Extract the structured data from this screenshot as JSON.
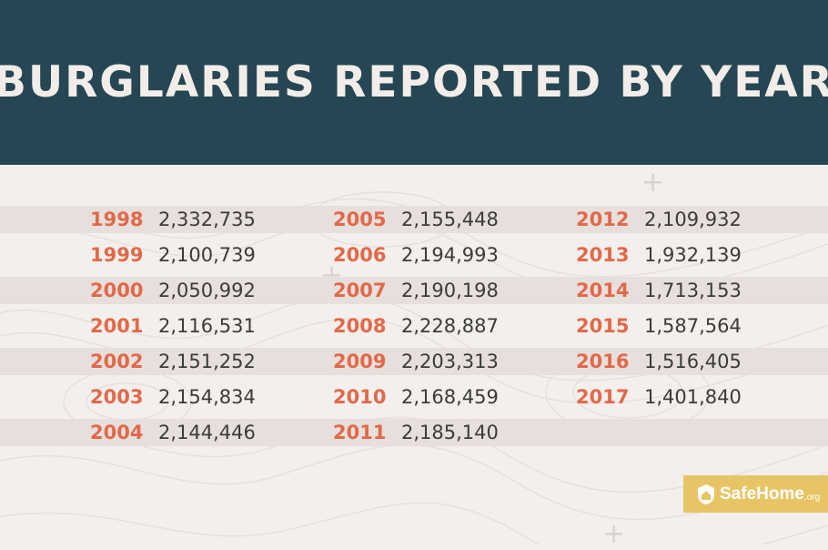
{
  "header": {
    "title": "BURGLARIES REPORTED BY YEAR"
  },
  "badge": {
    "name": "SafeHome",
    "tld": ".org"
  },
  "decor": {
    "plus_icon": "+"
  },
  "colors": {
    "header_bg": "#264653",
    "year_text": "#e1694a",
    "value_text": "#3b3b3b",
    "band": "#e7dfdb",
    "background": "#f3efec",
    "badge_bg": "#e7c565"
  },
  "chart_data": {
    "type": "table",
    "title": "BURGLARIES REPORTED BY YEAR",
    "columns": [
      {
        "rows": [
          {
            "year": "1998",
            "value": "2,332,735"
          },
          {
            "year": "1999",
            "value": "2,100,739"
          },
          {
            "year": "2000",
            "value": "2,050,992"
          },
          {
            "year": "2001",
            "value": "2,116,531"
          },
          {
            "year": "2002",
            "value": "2,151,252"
          },
          {
            "year": "2003",
            "value": "2,154,834"
          },
          {
            "year": "2004",
            "value": "2,144,446"
          }
        ]
      },
      {
        "rows": [
          {
            "year": "2005",
            "value": "2,155,448"
          },
          {
            "year": "2006",
            "value": "2,194,993"
          },
          {
            "year": "2007",
            "value": "2,190,198"
          },
          {
            "year": "2008",
            "value": "2,228,887"
          },
          {
            "year": "2009",
            "value": "2,203,313"
          },
          {
            "year": "2010",
            "value": "2,168,459"
          },
          {
            "year": "2011",
            "value": "2,185,140"
          }
        ]
      },
      {
        "rows": [
          {
            "year": "2012",
            "value": "2,109,932"
          },
          {
            "year": "2013",
            "value": "1,932,139"
          },
          {
            "year": "2014",
            "value": "1,713,153"
          },
          {
            "year": "2015",
            "value": "1,587,564"
          },
          {
            "year": "2016",
            "value": "1,516,405"
          },
          {
            "year": "2017",
            "value": "1,401,840"
          }
        ]
      }
    ]
  }
}
